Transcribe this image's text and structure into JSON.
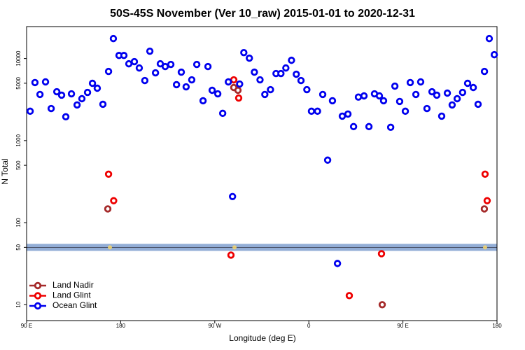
{
  "chart_data": {
    "type": "scatter",
    "title": "50S-45S November (Ver 10_raw)   2015-01-01 to 2020-12-31",
    "x_label": "Longitude (deg E)",
    "y_label": "N Total",
    "log_y": true,
    "xlim": [
      90,
      540
    ],
    "ylim": [
      6.4,
      24500
    ],
    "xticks": [
      {
        "value": 90,
        "label": "90 E"
      },
      180,
      {
        "value": 270,
        "label": "90 W"
      },
      {
        "value": 360,
        "label": "0"
      },
      {
        "value": 450,
        "label": "90 E"
      },
      {
        "value": 540,
        "label": "180"
      }
    ],
    "yticks": [
      10,
      50,
      100,
      500,
      1000,
      5000,
      10000
    ],
    "hline": 50,
    "hline_color": "#7f9fcf",
    "legend": "bottom-left",
    "series": [
      {
        "name": "Land Nadir",
        "color": "#a52a2a",
        "x": [
          167.7,
          288.2,
          292.2,
          430.2,
          527.9
        ],
        "values": [
          147,
          4435,
          4100,
          10,
          147
        ]
      },
      {
        "name": "Land Glint",
        "color": "#ee0000",
        "x": [
          168.4,
          173.3,
          288.2,
          292.9,
          285.5,
          398.7,
          429.5,
          528.6,
          530.6
        ],
        "values": [
          390,
          185,
          5500,
          3300,
          40.2,
          12.9,
          41.8,
          390,
          185
        ]
      },
      {
        "name": "Ocean Glint",
        "color": "#0000ee",
        "x": [
          93.4,
          98,
          102.8,
          108.1,
          113.5,
          118.9,
          123.5,
          127.5,
          132.9,
          138.3,
          142.9,
          148.3,
          153,
          157.6,
          163,
          168.4,
          173,
          178.4,
          183.1,
          187.8,
          193.1,
          197.8,
          203.1,
          207.9,
          213.3,
          217.9,
          222.6,
          228,
          233.4,
          238,
          242.6,
          248,
          252.8,
          258.8,
          263.5,
          267.5,
          272.9,
          277.6,
          283,
          287,
          293.8,
          297.8,
          303.1,
          307.9,
          313.3,
          317.9,
          323.3,
          328.6,
          333.3,
          338,
          343.4,
          348,
          352.5,
          358.1,
          362.5,
          368.3,
          373.3,
          378,
          382.6,
          387.4,
          392,
          397.4,
          402.8,
          407.4,
          412.8,
          417.5,
          422.8,
          427.5,
          431.5,
          438.3,
          442.3,
          446.9,
          452.3,
          457,
          462.4,
          467,
          473,
          477.8,
          482.4,
          487.1,
          492.5,
          497.1,
          501.9,
          507.1,
          511.9,
          517.3,
          521.9,
          528,
          532.6,
          537.4
        ],
        "values": [
          2280,
          5100,
          3650,
          5190,
          2460,
          3940,
          3575,
          1950,
          3715,
          2720,
          3240,
          3865,
          4990,
          4350,
          2770,
          6960,
          17500,
          10900,
          10900,
          8630,
          9160,
          7670,
          5390,
          12280,
          6690,
          8630,
          7980,
          8470,
          4800,
          6820,
          4520,
          5500,
          8470,
          3055,
          7980,
          4100,
          3715,
          2150,
          5190,
          208,
          4890,
          11810,
          10100,
          6820,
          5500,
          3650,
          4180,
          6560,
          6560,
          7670,
          9520,
          6440,
          5390,
          4180,
          2280,
          2280,
          3650,
          578,
          3055,
          31.8,
          1985,
          2105,
          1480,
          3390,
          3505,
          1480,
          3715,
          3505,
          3055,
          1452,
          4610,
          3000,
          2280,
          5100,
          3650,
          5190,
          2460,
          3940,
          3575,
          1985,
          3790,
          2720,
          3240,
          3865,
          4990,
          4435,
          2770,
          6960,
          17500,
          11140
        ]
      },
      {
        "color": "#f5d76e",
        "x": [
          169.7,
          288.9,
          528.6
        ],
        "values": [
          50,
          50,
          50
        ]
      }
    ]
  }
}
